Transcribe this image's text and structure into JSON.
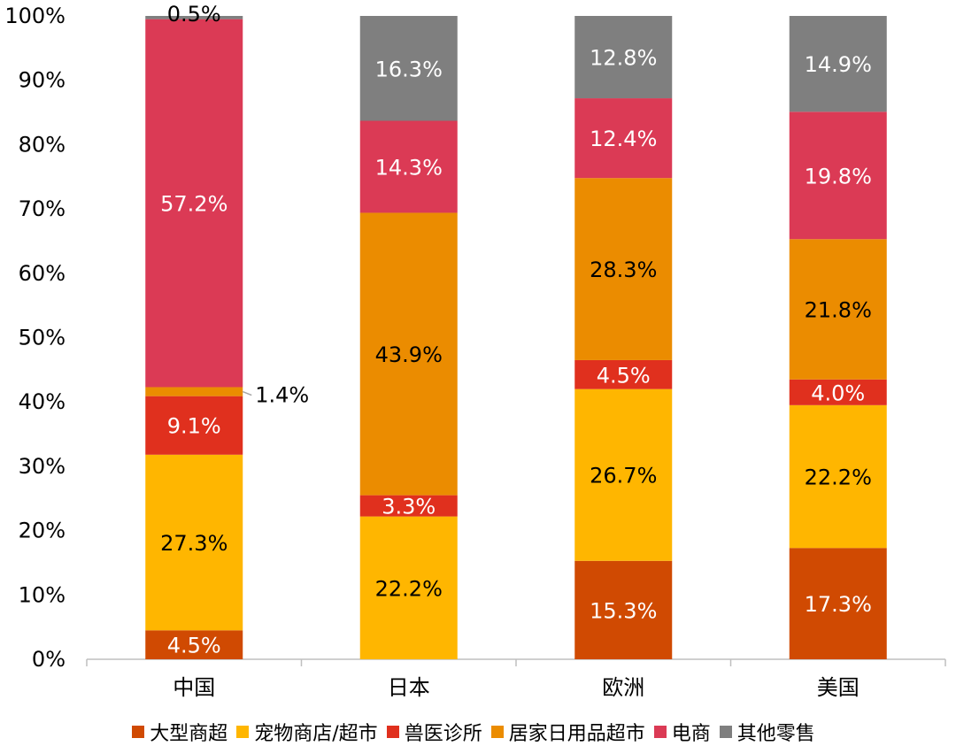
{
  "chart_data": {
    "type": "bar",
    "stacked": true,
    "categories": [
      "中国",
      "日本",
      "欧洲",
      "美国"
    ],
    "ylim": [
      0,
      100
    ],
    "y_ticks": [
      "0%",
      "10%",
      "20%",
      "30%",
      "40%",
      "50%",
      "60%",
      "70%",
      "80%",
      "90%",
      "100%"
    ],
    "grid": false,
    "legend_position": "bottom",
    "series": [
      {
        "name": "大型商超",
        "color": "#D04A02",
        "values": [
          4.5,
          0,
          15.3,
          17.3
        ],
        "labels": [
          "4.5%",
          "",
          "15.3%",
          "17.3%"
        ],
        "label_color": "#ffffff"
      },
      {
        "name": "宠物商店/超市",
        "color": "#FFB600",
        "values": [
          27.3,
          22.2,
          26.7,
          22.2
        ],
        "labels": [
          "27.3%",
          "22.2%",
          "26.7%",
          "22.2%"
        ],
        "label_color": "#000000"
      },
      {
        "name": "兽医诊所",
        "color": "#E0301E",
        "values": [
          9.1,
          3.3,
          4.5,
          4.0
        ],
        "labels": [
          "9.1%",
          "3.3%",
          "4.5%",
          "4.0%"
        ],
        "label_color": "#ffffff"
      },
      {
        "name": "居家日用品超市",
        "color": "#EB8C00",
        "values": [
          1.4,
          43.9,
          28.3,
          21.8
        ],
        "labels": [
          "1.4%",
          "43.9%",
          "28.3%",
          "21.8%"
        ],
        "label_color": "#000000"
      },
      {
        "name": "电商",
        "color": "#DB3A55",
        "values": [
          57.2,
          14.3,
          12.4,
          19.8
        ],
        "labels": [
          "57.2%",
          "14.3%",
          "12.4%",
          "19.8%"
        ],
        "label_color": "#ffffff"
      },
      {
        "name": "其他零售",
        "color": "#7F7F7F",
        "values": [
          0.5,
          16.3,
          12.8,
          14.9
        ],
        "labels": [
          "0.5%",
          "16.3%",
          "12.8%",
          "14.9%"
        ],
        "label_color": "#ffffff"
      }
    ]
  }
}
